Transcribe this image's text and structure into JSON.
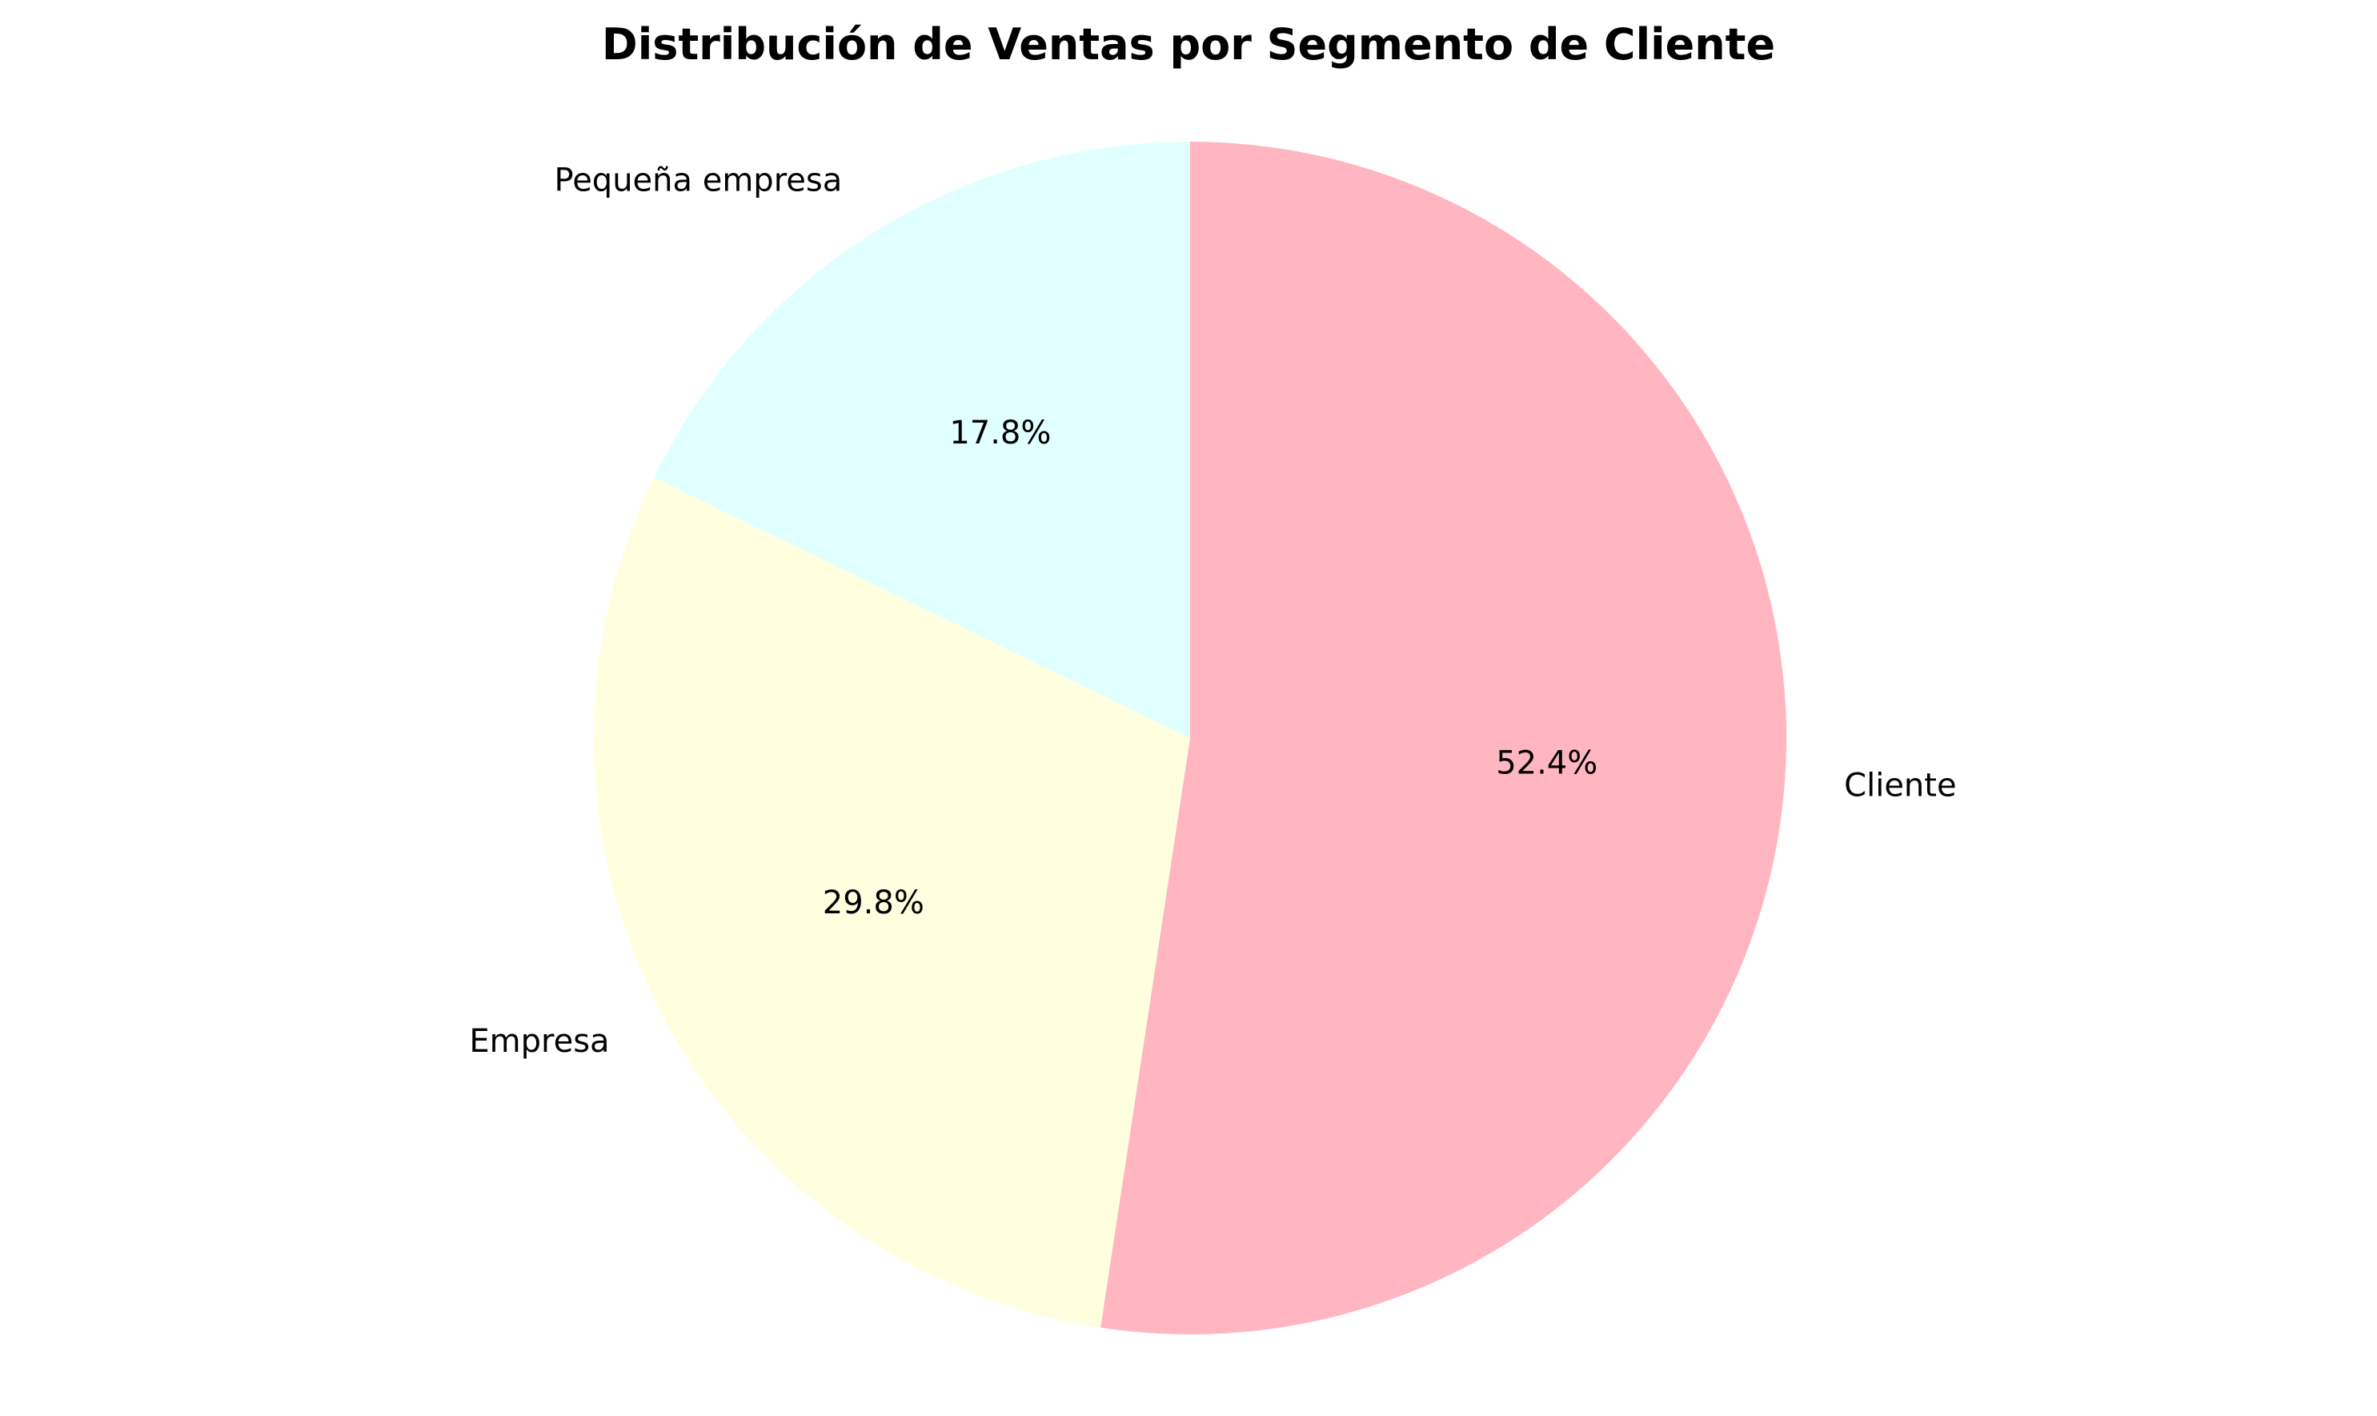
{
  "chart_data": {
    "type": "pie",
    "title": "Distribución de Ventas por Segmento de Cliente",
    "start_angle_deg": 90,
    "direction": "clockwise",
    "categories": [
      "Cliente",
      "Empresa",
      "Pequeña empresa"
    ],
    "values": [
      52.4,
      29.8,
      17.8
    ],
    "percent_labels": [
      "52.4%",
      "29.8%",
      "17.8%"
    ],
    "colors": [
      "#FFB6C1",
      "#FFFFE0",
      "#E0FFFF"
    ],
    "legend": "none"
  }
}
